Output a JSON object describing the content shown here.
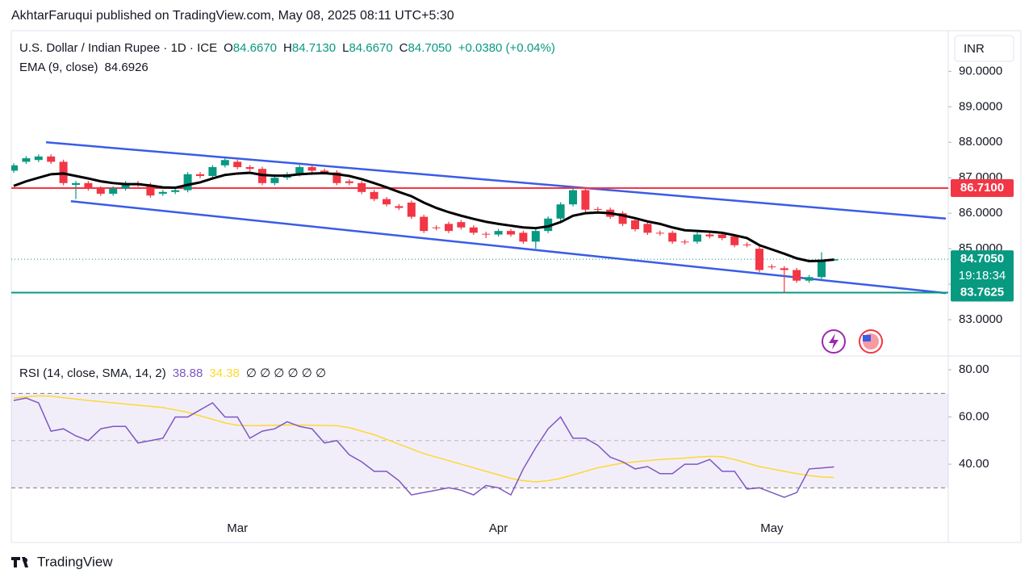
{
  "header": {
    "publisher": "AkhtarFaruqui published on TradingView.com, May 08, 2025 08:11 UTC+5:30"
  },
  "footer": {
    "brand": "TradingView"
  },
  "chart_data": [
    {
      "type": "candlestick",
      "title": "U.S. Dollar / Indian Rupee · 1D · ICE",
      "currency": "INR",
      "ohlc_legend": [
        {
          "key": "O",
          "value": "84.6670"
        },
        {
          "key": "H",
          "value": "84.7130"
        },
        {
          "key": "L",
          "value": "84.6670"
        },
        {
          "key": "C",
          "value": "84.7050"
        }
      ],
      "change": "+0.0380 (+0.04%)",
      "categories": [
        null,
        null,
        null,
        null,
        null,
        null,
        null,
        null,
        null,
        null,
        null,
        null,
        null,
        null,
        null,
        null,
        null,
        null,
        "Mar",
        null,
        null,
        null,
        null,
        null,
        null,
        null,
        null,
        null,
        null,
        null,
        null,
        null,
        null,
        null,
        null,
        null,
        null,
        null,
        null,
        "Apr",
        null,
        null,
        null,
        null,
        null,
        null,
        null,
        null,
        null,
        null,
        null,
        null,
        null,
        null,
        null,
        null,
        null,
        null,
        null,
        null,
        null,
        "May",
        null,
        null,
        null,
        null,
        null
      ],
      "open": [
        87.2,
        87.45,
        87.5,
        87.6,
        87.45,
        86.8,
        86.85,
        86.7,
        86.55,
        86.7,
        86.85,
        86.8,
        86.55,
        86.6,
        86.65,
        87.1,
        87.05,
        87.35,
        87.45,
        87.3,
        87.25,
        86.85,
        87.0,
        87.1,
        87.3,
        87.2,
        87.15,
        86.9,
        86.85,
        86.6,
        86.4,
        86.2,
        86.3,
        85.9,
        85.6,
        85.7,
        85.75,
        85.6,
        85.42,
        85.4,
        85.5,
        85.45,
        85.2,
        85.5,
        85.85,
        86.25,
        86.65,
        86.12,
        86.1,
        86.0,
        85.8,
        85.7,
        85.45,
        85.45,
        85.2,
        85.2,
        85.4,
        85.4,
        85.35,
        85.12,
        85.0,
        84.5,
        84.45,
        84.4,
        84.1,
        84.2,
        84.667
      ],
      "high": [
        87.41,
        87.61,
        87.66,
        87.66,
        87.51,
        86.91,
        86.91,
        86.76,
        86.76,
        86.91,
        86.91,
        86.86,
        86.66,
        86.71,
        87.16,
        87.16,
        87.36,
        87.56,
        87.51,
        87.36,
        87.31,
        87.06,
        87.16,
        87.36,
        87.36,
        87.26,
        87.21,
        86.96,
        86.91,
        86.66,
        86.46,
        86.26,
        86.36,
        85.96,
        85.66,
        85.76,
        85.81,
        85.66,
        85.48,
        85.56,
        85.56,
        85.51,
        85.56,
        85.91,
        86.31,
        86.72,
        86.71,
        86.18,
        86.16,
        86.06,
        85.86,
        85.76,
        85.51,
        85.51,
        85.26,
        85.46,
        85.46,
        85.46,
        85.41,
        85.18,
        85.06,
        84.56,
        84.51,
        84.46,
        84.26,
        84.9,
        84.713
      ],
      "low": [
        87.14,
        87.39,
        87.44,
        87.39,
        86.79,
        86.4,
        86.64,
        86.49,
        86.49,
        86.64,
        86.74,
        86.44,
        86.49,
        86.54,
        86.59,
        86.99,
        86.99,
        87.29,
        87.24,
        87.19,
        86.79,
        86.79,
        86.94,
        87.04,
        87.14,
        87.09,
        86.79,
        86.79,
        86.54,
        86.34,
        86.19,
        86.09,
        85.84,
        85.44,
        85.52,
        85.44,
        85.54,
        85.39,
        85.3,
        85.34,
        85.34,
        85.14,
        85.0,
        85.44,
        85.79,
        86.19,
        86.04,
        86.04,
        85.84,
        85.64,
        85.49,
        85.39,
        85.37,
        85.14,
        85.12,
        85.14,
        85.29,
        85.24,
        85.04,
        85.04,
        84.34,
        84.42,
        83.76,
        84.04,
        84.04,
        84.14,
        84.667
      ],
      "close": [
        87.35,
        87.55,
        87.6,
        87.45,
        86.85,
        86.85,
        86.7,
        86.55,
        86.7,
        86.85,
        86.8,
        86.5,
        86.6,
        86.65,
        87.1,
        87.05,
        87.3,
        87.5,
        87.3,
        87.25,
        86.85,
        87.0,
        87.1,
        87.3,
        87.2,
        87.15,
        86.85,
        86.85,
        86.6,
        86.4,
        86.25,
        86.15,
        85.9,
        85.5,
        85.58,
        85.5,
        85.6,
        85.45,
        85.4,
        85.5,
        85.4,
        85.2,
        85.5,
        85.85,
        86.25,
        86.65,
        86.1,
        86.1,
        85.9,
        85.7,
        85.55,
        85.45,
        85.43,
        85.2,
        85.18,
        85.4,
        85.35,
        85.3,
        85.1,
        85.1,
        84.4,
        84.48,
        84.4,
        84.1,
        84.2,
        84.65,
        84.705
      ],
      "up_color": "#089981",
      "down_color": "#f23645",
      "series": [
        {
          "name": "EMA (9, close)",
          "color": "#000000",
          "values": [
            86.77,
            86.9,
            87.0,
            87.1,
            87.12,
            87.05,
            86.98,
            86.9,
            86.85,
            86.82,
            86.82,
            86.78,
            86.73,
            86.72,
            86.8,
            86.87,
            86.98,
            87.08,
            87.12,
            87.14,
            87.08,
            87.06,
            87.06,
            87.1,
            87.12,
            87.13,
            87.1,
            87.05,
            86.96,
            86.85,
            86.73,
            86.6,
            86.48,
            86.3,
            86.15,
            86.03,
            85.93,
            85.84,
            85.76,
            85.7,
            85.65,
            85.6,
            85.58,
            85.63,
            85.75,
            85.93,
            86.0,
            86.02,
            86.0,
            85.94,
            85.86,
            85.77,
            85.7,
            85.6,
            85.52,
            85.5,
            85.48,
            85.45,
            85.38,
            85.3,
            85.1,
            84.98,
            84.86,
            84.73,
            84.65,
            84.66,
            84.6926
          ]
        }
      ],
      "ylim": [
        82,
        91.1
      ],
      "yticks": [
        {
          "value": 83,
          "label": "83.0000"
        },
        {
          "value": 84,
          "label": "84.0000"
        },
        {
          "value": 85,
          "label": "85.0000"
        },
        {
          "value": 86,
          "label": "86.0000"
        },
        {
          "value": 87,
          "label": "87.0000"
        },
        {
          "value": 88,
          "label": "88.0000"
        },
        {
          "value": 89,
          "label": "89.0000"
        },
        {
          "value": 90,
          "label": "90.0000"
        }
      ],
      "price_lines": [
        {
          "value": 86.71,
          "label": "86.7100",
          "color": "#f23645"
        },
        {
          "value": 83.7625,
          "label": "83.7625",
          "color": "#089981"
        }
      ],
      "last_price_label": "84.7050",
      "countdown": "19:18:34",
      "trendlines": [
        {
          "color": "#3a5ce6",
          "points": [
            [
              2.6,
              88.0
            ],
            [
              75,
              85.85
            ]
          ]
        },
        {
          "color": "#3a5ce6",
          "points": [
            [
              4.6,
              86.34
            ],
            [
              75,
              83.75
            ]
          ]
        }
      ]
    },
    {
      "type": "line",
      "title": "RSI (14, close, SMA, 14, 2)",
      "placeholders": "∅ ∅ ∅ ∅ ∅ ∅",
      "series": [
        {
          "color": "#7e57c2",
          "values": [
            67,
            68,
            66,
            54,
            55,
            52,
            50,
            55,
            56,
            56,
            49,
            50,
            51,
            60,
            60,
            63,
            66,
            60,
            60,
            51,
            54,
            55,
            58,
            56,
            55,
            49,
            50,
            44,
            41,
            37,
            37,
            33,
            27,
            28,
            29,
            30,
            29,
            27,
            31,
            30,
            27,
            38,
            47,
            55,
            60,
            51,
            51,
            48,
            43,
            41,
            38,
            39,
            36,
            36,
            40,
            40,
            42,
            37,
            37,
            29.5,
            30,
            28,
            26,
            28,
            38,
            38.4,
            38.88
          ]
        },
        {
          "color": "#fdd835",
          "values": [
            68,
            68.5,
            69,
            68.8,
            68.2,
            67.6,
            67,
            66.5,
            66,
            65.5,
            65,
            64.5,
            64,
            63,
            62,
            60.5,
            59,
            57.5,
            56.5,
            56.3,
            56.4,
            56.5,
            56.6,
            56.6,
            56.5,
            56.4,
            56.3,
            55.5,
            54,
            52.5,
            50.5,
            48.5,
            46.5,
            44.5,
            43,
            41.5,
            40,
            38.5,
            37,
            35.5,
            34,
            33,
            32.5,
            33,
            34,
            35.5,
            37,
            38.5,
            39.5,
            40.5,
            41,
            41.5,
            42,
            42.3,
            42.6,
            43,
            43.3,
            43.2,
            42,
            40.5,
            39,
            38,
            37,
            36,
            35.2,
            34.6,
            34.38
          ]
        }
      ],
      "ylim": [
        17.8,
        85.5
      ],
      "yticks": [
        {
          "value": 40,
          "label": "40.00"
        },
        {
          "value": 60,
          "label": "60.00"
        },
        {
          "value": 80,
          "label": "80.00"
        }
      ],
      "band": [
        30,
        70
      ],
      "midline": 50
    }
  ]
}
